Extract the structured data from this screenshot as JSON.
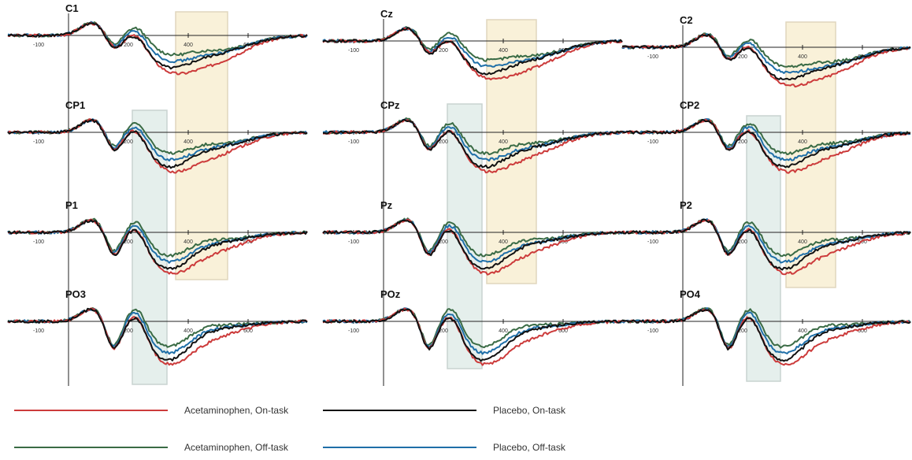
{
  "chart_data": {
    "type": "line",
    "x_ticks": [
      -100,
      200,
      400,
      600
    ],
    "series": [
      {
        "name": "Acetaminophen, On-task",
        "color": "#cc3b3b"
      },
      {
        "name": "Placebo, On-task",
        "color": "#111111"
      },
      {
        "name": "Acetaminophen, Off-task",
        "color": "#3a6b45"
      },
      {
        "name": "Placebo, Off-task",
        "color": "#1f6fa8"
      }
    ],
    "highlights": [
      {
        "name": "early window",
        "color": "#dce9e5"
      },
      {
        "name": "late window",
        "color": "#f8edcf"
      }
    ],
    "panels": [
      {
        "label": "C1"
      },
      {
        "label": "Cz"
      },
      {
        "label": "C2"
      },
      {
        "label": "CP1"
      },
      {
        "label": "CPz"
      },
      {
        "label": "CP2"
      },
      {
        "label": "P1"
      },
      {
        "label": "Pz"
      },
      {
        "label": "P2"
      },
      {
        "label": "PO3"
      },
      {
        "label": "POz"
      },
      {
        "label": "PO4"
      }
    ]
  },
  "legend": [
    {
      "label": "Acetaminophen, On-task",
      "color": "#cc3b3b"
    },
    {
      "label": "Placebo, On-task",
      "color": "#111111"
    },
    {
      "label": "Acetaminophen, Off-task",
      "color": "#3a6b45"
    },
    {
      "label": "Placebo, Off-task",
      "color": "#1f6fa8"
    }
  ]
}
